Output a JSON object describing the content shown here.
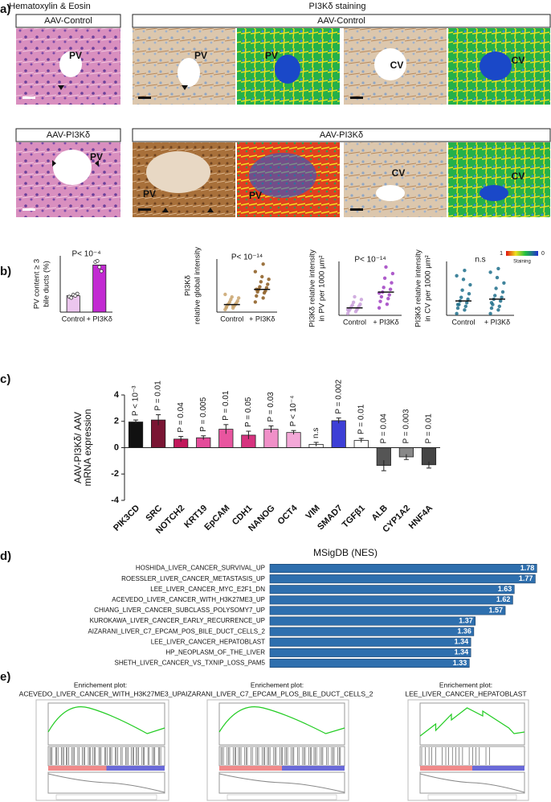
{
  "figure": {
    "panel_labels": [
      "a)",
      "b)",
      "c)",
      "d)",
      "e)"
    ],
    "panel_a": {
      "he_title": "Hematoxylin & Eosin",
      "pi3k_title": "PI3Kδ staining",
      "rows": [
        {
          "he_header": "AAV-Control",
          "header": "AAV-Control",
          "he_label": "PV",
          "image_labels": [
            "PV",
            "PV",
            "CV",
            "CV"
          ]
        },
        {
          "he_header": "AAV-PI3Kδ",
          "header": "AAV-PI3Kδ",
          "he_label": "PV",
          "image_labels": [
            "PV",
            "PV",
            "CV",
            "CV"
          ]
        }
      ],
      "colorbar": {
        "min_label": "1",
        "max_label": "0",
        "label": "Staining"
      }
    },
    "panel_e": [
      {
        "title": "Enrichement plot:",
        "gene_set": "ACEVEDO_LIVER_CANCER_WITH_H3K27ME3_UP"
      },
      {
        "title": "Enrichement plot:",
        "gene_set": "AIZARANI_LIVER_C7_EPCAM_PLOS_BILE_DUCT_CELLS_2"
      },
      {
        "title": "Enrichement plot:",
        "gene_set": "LEE_LIVER_CANCER_HEPATOBLAST"
      }
    ]
  },
  "chart_data": [
    {
      "type": "bar",
      "y_label": [
        "PV content ≥ 3",
        "bile ducts (%)"
      ],
      "annotation": "P< 10⁻⁴",
      "categories": [
        "Control",
        "+ PI3Kδ"
      ],
      "values": [
        16,
        46
      ],
      "colors": [
        "#ecc6ee",
        "#c22ad2"
      ],
      "points": [
        [
          15,
          14,
          17,
          16,
          18
        ],
        [
          49,
          50,
          44,
          40
        ]
      ],
      "ylim": [
        0,
        55
      ]
    },
    {
      "type": "dotplot",
      "y_label": [
        "PI3Kδ",
        "relative global intensity"
      ],
      "annotation": "P< 10⁻¹⁴",
      "categories": [
        "Control",
        "+ PI3Kδ"
      ],
      "values": [
        15,
        45
      ],
      "colors": [
        "#c9a36c",
        "#8b5a1e"
      ],
      "points": [
        [
          5,
          8,
          10,
          12,
          14,
          15,
          16,
          18,
          20,
          22,
          25,
          28,
          30,
          35,
          12,
          9
        ],
        [
          20,
          28,
          32,
          38,
          40,
          42,
          45,
          48,
          50,
          55,
          60,
          65,
          70,
          80,
          95,
          45
        ]
      ],
      "ylim": [
        0,
        105
      ]
    },
    {
      "type": "dotplot",
      "y_label": [
        "PI3Kδ relative intensity",
        "in PV per 1000 µm²"
      ],
      "annotation": "P< 10⁻¹⁴",
      "categories": [
        "Control",
        "+ PI3Kδ"
      ],
      "values": [
        8,
        25
      ],
      "colors": [
        "#c9a0da",
        "#a040c2"
      ],
      "points": [
        [
          2,
          4,
          5,
          6,
          7,
          8,
          9,
          10,
          11,
          12,
          14,
          17,
          20,
          6
        ],
        [
          8,
          12,
          15,
          18,
          20,
          22,
          25,
          28,
          30,
          35,
          40,
          45,
          52,
          24
        ]
      ],
      "ylim": [
        0,
        58
      ]
    },
    {
      "type": "dotplot",
      "y_label": [
        "PI3Kδ relative intensity",
        "in CV per 1000 µm²"
      ],
      "annotation": "n.s",
      "categories": [
        "Control",
        "+ PI3Kδ"
      ],
      "values": [
        8,
        9
      ],
      "colors": [
        "#1f6f8b",
        "#1f6f8b"
      ],
      "points": [
        [
          1,
          3,
          4,
          5,
          6,
          7,
          8,
          9,
          10,
          12,
          14,
          17,
          20,
          22,
          25,
          6
        ],
        [
          1,
          3,
          4,
          5,
          6,
          8,
          9,
          10,
          11,
          13,
          15,
          18,
          21,
          24,
          26,
          7
        ]
      ],
      "ylim": [
        0,
        30
      ]
    },
    {
      "type": "bar",
      "y_label": [
        "AAV-PI3Kδ/ AAV",
        "mRNA expression"
      ],
      "categories": [
        "PIK3CD",
        "SRC",
        "NOTCH2",
        "KRT19",
        "EpCAM",
        "CDH1",
        "NANOG",
        "OCT4",
        "VIM",
        "SMAD7",
        "TGFβ1",
        "ALB",
        "CYP1A2",
        "HNF4A"
      ],
      "values": [
        1.95,
        2.1,
        0.65,
        0.75,
        1.4,
        0.95,
        1.4,
        1.15,
        0.25,
        2.05,
        0.55,
        -1.35,
        -0.7,
        -1.3
      ],
      "errors": [
        0.15,
        0.4,
        0.2,
        0.15,
        0.35,
        0.3,
        0.25,
        0.15,
        0.15,
        0.2,
        0.15,
        0.4,
        0.2,
        0.25
      ],
      "annotations": [
        "P < 10⁻³",
        "P = 0.01",
        "P = 0.04",
        "P = 0.005",
        "P = 0.01",
        "P = 0.05",
        "P = 0.03",
        "P < 10⁻⁴",
        "n.s",
        "P = 0.002",
        "P = 0.01",
        "P = 0.04",
        "P = 0.003",
        "P = 0.01"
      ],
      "colors": [
        "#111111",
        "#7a1533",
        "#c2185b",
        "#e44c9a",
        "#e8559f",
        "#d6337f",
        "#f090c8",
        "#f4a8d8",
        "#ffffff",
        "#3d3fd6",
        "#ffffff",
        "#555555",
        "#888888",
        "#444444"
      ],
      "ylim": [
        -4,
        4
      ],
      "yticks": [
        -4,
        -2,
        0,
        2,
        4
      ]
    },
    {
      "type": "barh",
      "title": "MSigDB (NES)",
      "categories": [
        "HOSHIDA_LIVER_CANCER_SURVIVAL_UP",
        "ROESSLER_LIVER_CANCER_METASTASIS_UP",
        "LEE_LIVER_CANCER_MYC_E2F1_DN",
        "ACEVEDO_LIVER_CANCER_WITH_H3K27ME3_UP",
        "CHIANG_LIVER_CANCER_SUBCLASS_POLYSOMY7_UP",
        "KUROKAWA_LIVER_CANCER_EARLY_RECURRENCE_UP",
        "AIZARANI_LIVER_C7_EPCAM_POS_BILE_DUCT_CELLS_2",
        "LEE_LIVER_CANCER_HEPATOBLAST",
        "HP_NEOPLASM_OF_THE_LIVER",
        "SHETH_LIVER_CANCER_VS_TXNIP_LOSS_PAM5"
      ],
      "values": [
        1.78,
        1.77,
        1.63,
        1.62,
        1.57,
        1.37,
        1.36,
        1.34,
        1.34,
        1.33
      ],
      "color": "#2e6fae",
      "xlim": [
        0,
        1.8
      ]
    }
  ]
}
